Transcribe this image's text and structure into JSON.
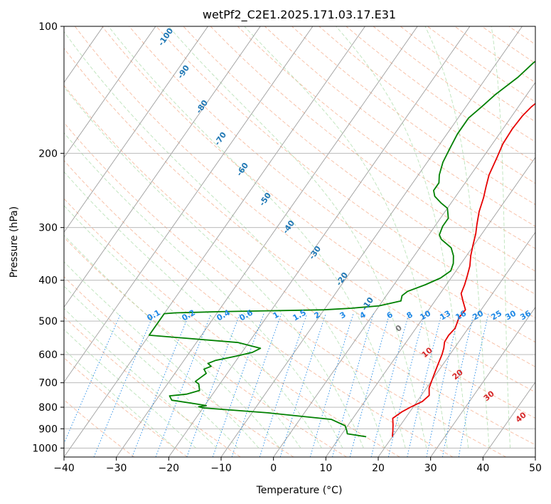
{
  "chart_data": {
    "type": "line",
    "title": "wetPf2_C2E1.2025.171.03.17.E31",
    "xlabel": "Temperature (°C)",
    "ylabel": "Pressure (hPa)",
    "xlim": [
      -40,
      50
    ],
    "ylim": [
      1050,
      100
    ],
    "y_scale": "log",
    "grid": true,
    "x_ticks": [
      "−40",
      "−30",
      "−20",
      "−10",
      "0",
      "10",
      "20",
      "30",
      "40",
      "50"
    ],
    "y_ticks": [
      {
        "p": 100,
        "label": "100"
      },
      {
        "p": 200,
        "label": "200"
      },
      {
        "p": 300,
        "label": "300"
      },
      {
        "p": 400,
        "label": "400"
      },
      {
        "p": 500,
        "label": "500"
      },
      {
        "p": 600,
        "label": "600"
      },
      {
        "p": 700,
        "label": "700"
      },
      {
        "p": 800,
        "label": "800"
      },
      {
        "p": 900,
        "label": "900"
      },
      {
        "p": 1000,
        "label": "1000"
      }
    ],
    "series": [
      {
        "color": "#e60000",
        "points": [
          [
            20,
            940
          ],
          [
            19.3,
            910
          ],
          [
            18.5,
            880
          ],
          [
            17.6,
            850
          ],
          [
            18.5,
            820
          ],
          [
            19.5,
            800
          ],
          [
            21,
            775
          ],
          [
            21.5,
            750
          ],
          [
            20.5,
            720
          ],
          [
            20,
            690
          ],
          [
            19.5,
            660
          ],
          [
            19,
            630
          ],
          [
            18.5,
            600
          ],
          [
            18,
            580
          ],
          [
            17.3,
            560
          ],
          [
            17.2,
            540
          ],
          [
            17.5,
            520
          ],
          [
            16.8,
            490
          ],
          [
            17,
            470
          ],
          [
            15.5,
            450
          ],
          [
            14,
            430
          ],
          [
            13.5,
            410
          ],
          [
            12.8,
            390
          ],
          [
            12,
            370
          ],
          [
            10.8,
            350
          ],
          [
            9.8,
            330
          ],
          [
            8.8,
            310
          ],
          [
            7.8,
            295
          ],
          [
            6.5,
            275
          ],
          [
            5.5,
            255
          ],
          [
            4.5,
            240
          ],
          [
            3.5,
            225
          ],
          [
            2.7,
            205
          ],
          [
            2,
            190
          ],
          [
            1.8,
            175
          ],
          [
            2,
            163
          ],
          [
            2.5,
            155
          ],
          [
            3.5,
            147
          ],
          [
            4.2,
            138
          ],
          [
            4.5,
            128
          ],
          [
            4.2,
            120
          ],
          [
            5.2,
            112
          ],
          [
            6,
            106
          ],
          [
            7.5,
            100
          ]
        ]
      },
      {
        "color": "#008000",
        "points": [
          [
            15,
            940
          ],
          [
            11,
            925
          ],
          [
            10.5,
            910
          ],
          [
            9.5,
            885
          ],
          [
            6,
            855
          ],
          [
            -7,
            825
          ],
          [
            -20,
            803
          ],
          [
            -21,
            798
          ],
          [
            -19.7,
            793
          ],
          [
            -22,
            785
          ],
          [
            -27,
            770
          ],
          [
            -28,
            752
          ],
          [
            -25,
            745
          ],
          [
            -23,
            730
          ],
          [
            -24,
            705
          ],
          [
            -25,
            695
          ],
          [
            -24.5,
            680
          ],
          [
            -24,
            665
          ],
          [
            -25,
            650
          ],
          [
            -24,
            640
          ],
          [
            -25,
            630
          ],
          [
            -24,
            620
          ],
          [
            -20.5,
            605
          ],
          [
            -18,
            593
          ],
          [
            -17,
            580
          ],
          [
            -22,
            562
          ],
          [
            -40,
            540
          ],
          [
            -40,
            480
          ],
          [
            -38,
            478
          ],
          [
            -30,
            475
          ],
          [
            -10,
            470
          ],
          [
            -5,
            466
          ],
          [
            0,
            460
          ],
          [
            3.5,
            448
          ],
          [
            3,
            435
          ],
          [
            3.5,
            425
          ],
          [
            6,
            410
          ],
          [
            8,
            395
          ],
          [
            9,
            380
          ],
          [
            8.5,
            365
          ],
          [
            7.5,
            350
          ],
          [
            6,
            335
          ],
          [
            3,
            320
          ],
          [
            2,
            312
          ],
          [
            1.5,
            298
          ],
          [
            1.5,
            285
          ],
          [
            0,
            270
          ],
          [
            -2,
            262
          ],
          [
            -4,
            253
          ],
          [
            -5,
            245
          ],
          [
            -5,
            235
          ],
          [
            -6,
            225
          ],
          [
            -7,
            210
          ],
          [
            -7.5,
            195
          ],
          [
            -8,
            180
          ],
          [
            -8,
            165
          ],
          [
            -7,
            155
          ],
          [
            -6,
            145
          ],
          [
            -4,
            132
          ],
          [
            -3,
            122
          ],
          [
            -1,
            112
          ],
          [
            0.5,
            105
          ],
          [
            1.5,
            100
          ]
        ]
      }
    ],
    "mixing_ratio_labels": [
      "0.1",
      "0.2",
      "0.4",
      "0.6",
      "1",
      "1.5",
      "2",
      "3",
      "4",
      "6",
      "8",
      "10",
      "13",
      "16",
      "20",
      "25",
      "30",
      "36"
    ],
    "isotherm_labels": [
      "-100",
      "-90",
      "-80",
      "-70",
      "-60",
      "-50",
      "-40",
      "-30",
      "-20",
      "-10"
    ],
    "other_labels": [
      "0",
      "10",
      "20",
      "30",
      "40"
    ]
  }
}
